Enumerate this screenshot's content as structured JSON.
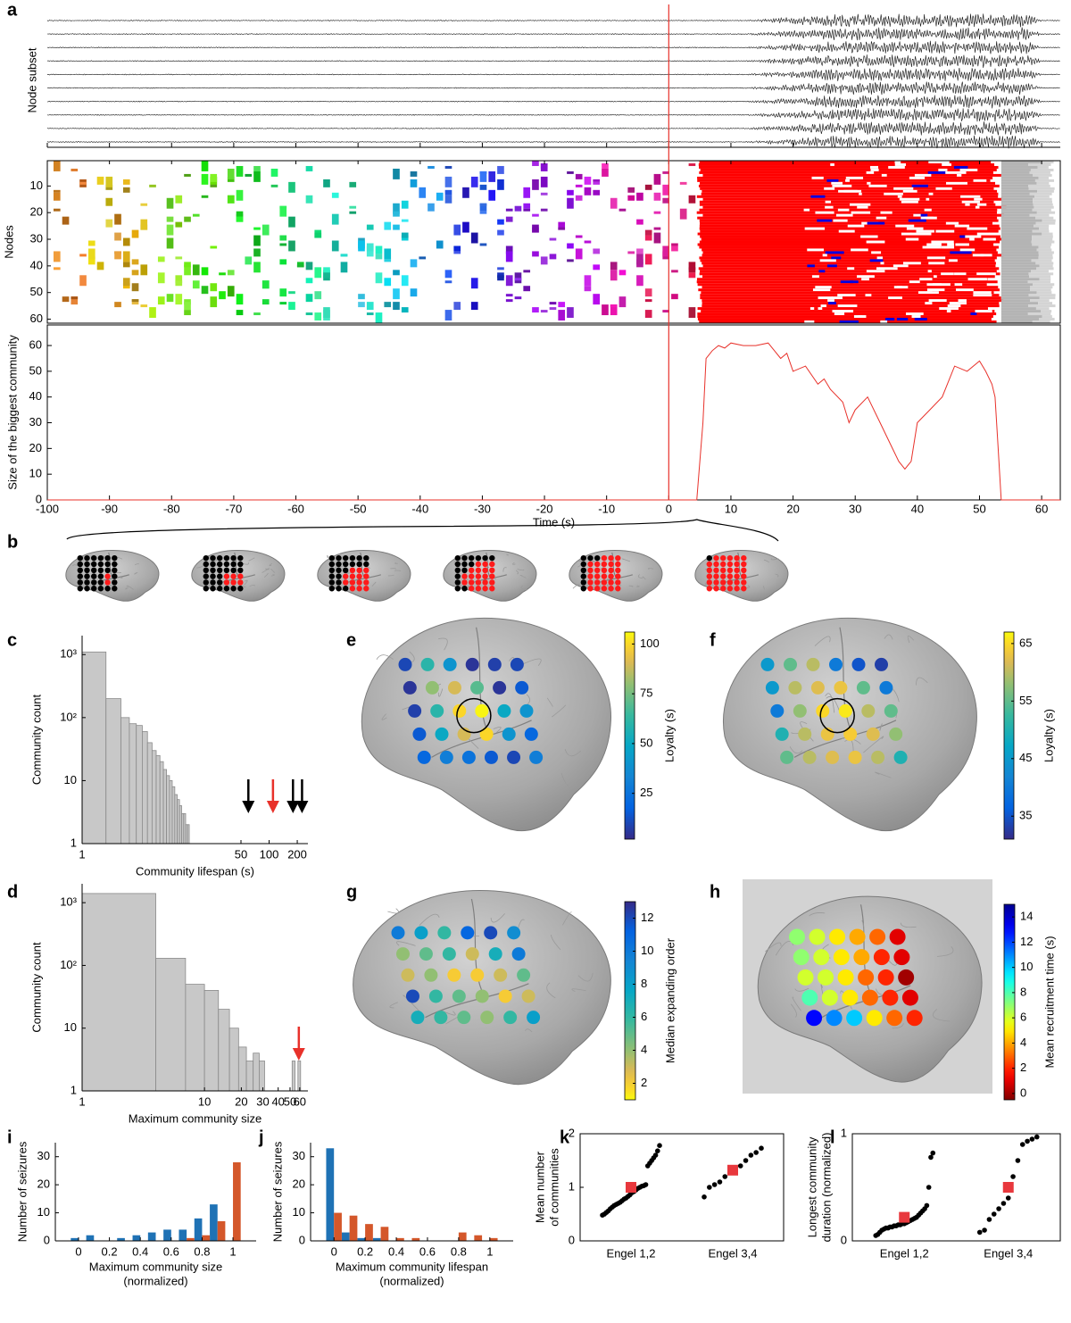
{
  "chart_data": [
    {
      "type": "traces",
      "panel": "a",
      "ylabel": "Node subset"
    },
    {
      "type": "community-map",
      "ylabel": "Nodes",
      "ylim": [
        0.5,
        61.5
      ],
      "yticks": [
        10,
        20,
        30,
        40,
        50,
        60
      ]
    },
    {
      "type": "line",
      "ylabel": "Size of the biggest community",
      "xlabel": "Time (s)",
      "xlim": [
        -100,
        63
      ],
      "xticks": [
        -100,
        -90,
        -80,
        -70,
        -60,
        -50,
        -40,
        -30,
        -20,
        -10,
        0,
        10,
        20,
        30,
        40,
        50,
        60
      ],
      "ylim": [
        0,
        68
      ],
      "yticks": [
        0,
        10,
        20,
        30,
        40,
        50,
        60
      ],
      "x": [
        -100,
        4.5,
        5.5,
        6,
        7,
        8,
        9,
        10,
        12,
        14,
        16,
        17,
        18,
        19,
        20,
        22,
        24,
        25,
        26,
        28,
        29,
        30,
        32,
        34,
        35,
        36,
        37,
        38,
        39,
        40,
        42,
        44,
        46,
        48,
        50,
        51,
        52,
        52.5,
        53,
        53.5,
        63
      ],
      "series": [
        {
          "color": "#e8312a",
          "values": [
            0,
            0,
            30,
            55,
            58,
            60,
            59,
            61,
            60,
            60,
            61,
            58,
            55,
            57,
            50,
            52,
            45,
            47,
            43,
            38,
            30,
            35,
            40,
            30,
            25,
            20,
            15,
            12,
            15,
            30,
            35,
            40,
            52,
            50,
            54,
            50,
            45,
            40,
            20,
            0,
            0
          ]
        }
      ],
      "vline": {
        "x": 0,
        "color": "#e8312a"
      }
    },
    {
      "type": "brain-row",
      "panel": "b"
    },
    {
      "type": "histogram",
      "panel": "c",
      "xlabel": "Community lifespan (s)",
      "ylabel": "Community count",
      "xscale": "log",
      "yscale": "log",
      "xlim": [
        1,
        260
      ],
      "ylim": [
        1,
        2000
      ],
      "xticks": [
        1,
        50,
        100,
        200
      ],
      "yticks": [
        1,
        10,
        {
          "value": 100,
          "label": "10²"
        },
        {
          "value": 1000,
          "label": "10³"
        }
      ],
      "bins": [
        1,
        1.8,
        2.6,
        3.2,
        3.8,
        4.4,
        5,
        5.6,
        6.2,
        6.8,
        7.4,
        8,
        8.6,
        9.2,
        9.8,
        10.4,
        11,
        11.6,
        12.2,
        12.8,
        13.4,
        14
      ],
      "counts": [
        1100,
        200,
        100,
        80,
        75,
        60,
        40,
        30,
        25,
        20,
        15,
        12,
        10,
        8,
        6,
        5,
        4,
        3,
        3,
        2,
        2
      ],
      "color": "#c8c8c8",
      "arrows": [
        {
          "x": 60,
          "color": "#000000"
        },
        {
          "x": 110,
          "color": "#e8312a"
        },
        {
          "x": 180,
          "color": "#000000"
        },
        {
          "x": 225,
          "color": "#000000"
        }
      ]
    },
    {
      "type": "brain-map",
      "panel": "e",
      "colorbar_label": "Loyalty (s)",
      "colormap": "parula",
      "clim": [
        2,
        106
      ],
      "cticks": [
        25,
        50,
        75,
        100
      ],
      "values": [
        10,
        60,
        40,
        5,
        8,
        10,
        5,
        80,
        90,
        70,
        5,
        15,
        8,
        60,
        100,
        105,
        50,
        40,
        15,
        50,
        90,
        100,
        40,
        20,
        20,
        30,
        25,
        15,
        10,
        30
      ]
    },
    {
      "type": "brain-map",
      "panel": "f",
      "colorbar_label": "Loyalty (s)",
      "colormap": "parula",
      "clim": [
        31,
        67
      ],
      "cticks": [
        35,
        45,
        55,
        65
      ],
      "values": [
        45,
        55,
        60,
        40,
        35,
        33,
        45,
        60,
        62,
        63,
        55,
        40,
        40,
        58,
        65,
        66,
        60,
        55,
        50,
        60,
        63,
        64,
        62,
        58,
        55,
        60,
        62,
        63,
        60,
        50
      ]
    },
    {
      "type": "histogram",
      "panel": "d",
      "xlabel": "Maximum community size",
      "ylabel": "Community count",
      "xscale": "log",
      "yscale": "log",
      "xlim": [
        1,
        70
      ],
      "ylim": [
        1,
        2000
      ],
      "xticks": [
        1,
        10,
        20,
        30,
        40,
        50,
        60
      ],
      "yticks": [
        1,
        10,
        {
          "value": 100,
          "label": "10²"
        },
        {
          "value": 1000,
          "label": "10³"
        }
      ],
      "bins": [
        1,
        4,
        7,
        10,
        13,
        16,
        19,
        22,
        25,
        28,
        31,
        34,
        37,
        40,
        43,
        46,
        49,
        52,
        55,
        58,
        61
      ],
      "counts": [
        1400,
        130,
        50,
        40,
        20,
        10,
        5,
        3,
        4,
        3,
        0,
        0,
        0,
        0,
        0,
        0,
        0,
        3,
        0,
        3
      ],
      "color": "#c8c8c8",
      "arrows": [
        {
          "x": 59,
          "color": "#e8312a"
        }
      ]
    },
    {
      "type": "brain-map",
      "panel": "g",
      "colorbar_label": "Median expanding order",
      "colormap": "parula",
      "reversed": true,
      "clim": [
        1,
        13
      ],
      "cticks": [
        2,
        4,
        6,
        8,
        10,
        12
      ],
      "values": [
        10,
        8,
        6,
        11,
        12,
        9,
        4,
        5,
        6,
        3,
        7,
        10,
        3,
        4,
        2,
        2,
        3,
        5,
        12,
        6,
        5,
        4,
        2,
        3,
        7,
        6,
        5,
        4,
        6,
        8
      ]
    },
    {
      "type": "brain-map",
      "panel": "h",
      "colorbar_label": "Mean recruitment time (s)",
      "colormap": "jet",
      "reversed": true,
      "clim": [
        -0.5,
        15
      ],
      "cticks": [
        0,
        2,
        4,
        6,
        8,
        10,
        12,
        14
      ],
      "background": "#d3d3d3",
      "values": [
        7,
        6,
        5,
        4,
        3,
        1,
        7,
        6,
        5,
        4,
        2,
        1,
        6,
        6,
        5,
        3,
        2,
        0,
        8,
        6,
        5,
        3,
        2,
        1,
        13,
        11,
        10,
        5,
        3,
        2
      ]
    },
    {
      "type": "grouped-bar",
      "panel": "i",
      "xlabel": [
        "Maximum community size",
        "(normalized)"
      ],
      "ylabel": "Number of seizures",
      "xlim": [
        -0.15,
        1.15
      ],
      "ylim": [
        0,
        35
      ],
      "xticks": [
        0,
        0.2,
        0.4,
        0.6,
        0.8,
        1
      ],
      "yticks": [
        0,
        10,
        20,
        30
      ],
      "x": [
        0,
        0.1,
        0.2,
        0.3,
        0.4,
        0.5,
        0.6,
        0.7,
        0.8,
        0.9,
        1
      ],
      "series": [
        {
          "color": "#1f72b5",
          "values": [
            1,
            2,
            0,
            1,
            2,
            3,
            4,
            4,
            8,
            13,
            0
          ]
        },
        {
          "color": "#d4572a",
          "values": [
            0,
            0,
            0,
            0,
            0,
            0,
            0,
            1,
            2,
            7,
            28
          ]
        }
      ]
    },
    {
      "type": "grouped-bar",
      "panel": "j",
      "xlabel": [
        "Maximum community lifespan",
        "(normalized)"
      ],
      "ylabel": "Number of seizures",
      "xlim": [
        -0.15,
        1.15
      ],
      "ylim": [
        0,
        35
      ],
      "xticks": [
        0,
        0.2,
        0.4,
        0.6,
        0.8,
        1
      ],
      "yticks": [
        0,
        10,
        20,
        30
      ],
      "x": [
        0,
        0.1,
        0.2,
        0.3,
        0.4,
        0.5,
        0.6,
        0.7,
        0.8,
        0.9,
        1
      ],
      "series": [
        {
          "color": "#1f72b5",
          "values": [
            33,
            3,
            1,
            1,
            0,
            0,
            0,
            0,
            0,
            0,
            0
          ]
        },
        {
          "color": "#d4572a",
          "values": [
            10,
            9,
            6,
            5,
            1,
            1,
            0,
            0,
            3,
            2,
            1
          ]
        }
      ]
    },
    {
      "type": "strip",
      "panel": "k",
      "ylabel": [
        "Mean number",
        "of communities"
      ],
      "categories": [
        "Engel 1,2",
        "Engel 3,4"
      ],
      "ylim": [
        0,
        2
      ],
      "yticks": [
        0,
        1,
        2
      ],
      "color": "#000000",
      "mean_color": "#e8383d",
      "series": [
        {
          "values": [
            0.48,
            0.5,
            0.53,
            0.56,
            0.6,
            0.63,
            0.66,
            0.68,
            0.7,
            0.72,
            0.75,
            0.78,
            0.8,
            0.83,
            0.86,
            0.9,
            0.92,
            0.95,
            0.98,
            1.0,
            1.02,
            1.03,
            1.05,
            1.4,
            1.45,
            1.5,
            1.55,
            1.6,
            1.68,
            1.78
          ]
        },
        {
          "values": [
            0.82,
            1.0,
            1.05,
            1.1,
            1.2,
            1.3,
            1.35,
            1.4,
            1.5,
            1.6,
            1.65,
            1.73
          ]
        }
      ],
      "means": [
        1.0,
        1.32
      ]
    },
    {
      "type": "strip",
      "panel": "l",
      "ylabel": [
        "Longest community",
        "duration (normalized)"
      ],
      "categories": [
        "Engel 1,2",
        "Engel 3,4"
      ],
      "ylim": [
        0,
        1
      ],
      "yticks": [
        0,
        1
      ],
      "color": "#000000",
      "mean_color": "#e8383d",
      "series": [
        {
          "values": [
            0.05,
            0.06,
            0.08,
            0.1,
            0.11,
            0.12,
            0.12,
            0.13,
            0.13,
            0.14,
            0.14,
            0.15,
            0.15,
            0.16,
            0.16,
            0.17,
            0.18,
            0.19,
            0.2,
            0.21,
            0.22,
            0.24,
            0.26,
            0.28,
            0.3,
            0.33,
            0.5,
            0.78,
            0.82
          ]
        },
        {
          "values": [
            0.08,
            0.1,
            0.2,
            0.25,
            0.3,
            0.35,
            0.4,
            0.6,
            0.75,
            0.9,
            0.93,
            0.95,
            0.97
          ]
        }
      ],
      "means": [
        0.22,
        0.5
      ]
    }
  ]
}
